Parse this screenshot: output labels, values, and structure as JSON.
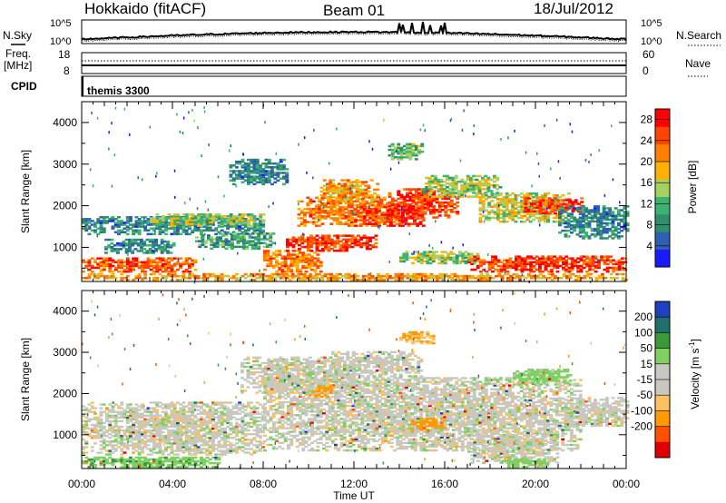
{
  "header": {
    "station": "Hokkaido (fitACF)",
    "beam": "Beam 01",
    "date": "18/Jul/2012"
  },
  "strips": {
    "nsky_label": "N.Sky",
    "nsearch_label": "N.Search",
    "noise_ticks_top": "10^5",
    "noise_ticks_bottom": "10^0",
    "freq_label_1": "Freq.",
    "freq_label_2": "[MHz]",
    "freq_ticks": [
      "18",
      "8"
    ],
    "nave_label": "Nave",
    "nave_ticks": [
      "60",
      "0"
    ],
    "cpid_label": "CPID",
    "cpid_value": "themis 3300"
  },
  "colors": {
    "power_scale": [
      "#1a1aff",
      "#2f5fb0",
      "#2f8f6a",
      "#3cb371",
      "#a8d060",
      "#ffb000",
      "#ff8000",
      "#ff4500",
      "#ff0000"
    ],
    "velocity_scale": [
      "#e00000",
      "#ff5000",
      "#ff9a00",
      "#ffc060",
      "#c8c8c0",
      "#c8c8c0",
      "#7fd060",
      "#3a9a3a",
      "#1f6f6a",
      "#2040c0"
    ],
    "ground_scatter": "#c8c8c0"
  },
  "chart_data": [
    {
      "type": "heatmap",
      "name": "power",
      "ylabel": "Slant Range [km]",
      "x_range": [
        "00:00",
        "00:00"
      ],
      "x_ticks": [
        "00:00",
        "04:00",
        "08:00",
        "12:00",
        "16:00",
        "20:00",
        "00:00"
      ],
      "y_range": [
        180,
        4500
      ],
      "y_ticks": [
        1000,
        2000,
        3000,
        4000
      ],
      "colorbar": {
        "label": "Power [dB]",
        "ticks": [
          4,
          8,
          12,
          16,
          20,
          24,
          28
        ],
        "range": [
          0,
          30
        ]
      },
      "regions": [
        {
          "t0": 0.0,
          "t1": 24.0,
          "r0": 200,
          "r1": 350,
          "power": 20
        },
        {
          "t0": 0.0,
          "t1": 5.0,
          "r0": 400,
          "r1": 750,
          "power": 24
        },
        {
          "t0": 1.0,
          "t1": 4.0,
          "r0": 850,
          "r1": 1200,
          "power": 8
        },
        {
          "t0": 0.0,
          "t1": 8.0,
          "r0": 1300,
          "r1": 1750,
          "power": 8
        },
        {
          "t0": 3.0,
          "t1": 8.0,
          "r0": 1500,
          "r1": 1800,
          "power": 14
        },
        {
          "t0": 5.0,
          "t1": 8.5,
          "r0": 950,
          "r1": 1350,
          "power": 10
        },
        {
          "t0": 8.0,
          "t1": 10.5,
          "r0": 400,
          "r1": 900,
          "power": 22
        },
        {
          "t0": 9.0,
          "t1": 13.0,
          "r0": 900,
          "r1": 1300,
          "power": 26
        },
        {
          "t0": 9.5,
          "t1": 13.5,
          "r0": 1500,
          "r1": 2200,
          "power": 22
        },
        {
          "t0": 10.5,
          "t1": 13.0,
          "r0": 2100,
          "r1": 2600,
          "power": 20
        },
        {
          "t0": 12.0,
          "t1": 15.0,
          "r0": 1500,
          "r1": 2000,
          "power": 26
        },
        {
          "t0": 13.5,
          "t1": 16.5,
          "r0": 1700,
          "r1": 2400,
          "power": 26
        },
        {
          "t0": 14.0,
          "t1": 17.5,
          "r0": 600,
          "r1": 900,
          "power": 14
        },
        {
          "t0": 15.0,
          "t1": 18.5,
          "r0": 2200,
          "r1": 2700,
          "power": 14
        },
        {
          "t0": 17.0,
          "t1": 24.0,
          "r0": 400,
          "r1": 800,
          "power": 26
        },
        {
          "t0": 17.5,
          "t1": 21.5,
          "r0": 1600,
          "r1": 2300,
          "power": 16
        },
        {
          "t0": 19.5,
          "t1": 22.0,
          "r0": 1800,
          "r1": 2200,
          "power": 26
        },
        {
          "t0": 13.5,
          "t1": 15.0,
          "r0": 3100,
          "r1": 3500,
          "power": 12
        },
        {
          "t0": 6.5,
          "t1": 9.0,
          "r0": 2500,
          "r1": 3100,
          "power": 8
        },
        {
          "t0": 21.0,
          "t1": 24.0,
          "r0": 1200,
          "r1": 2000,
          "power": 8
        }
      ]
    },
    {
      "type": "heatmap",
      "name": "velocity",
      "ylabel": "Slant Range [km]",
      "xlabel": "Time UT",
      "x_range": [
        "00:00",
        "00:00"
      ],
      "x_ticks": [
        "00:00",
        "04:00",
        "08:00",
        "12:00",
        "16:00",
        "20:00",
        "00:00"
      ],
      "y_range": [
        180,
        4500
      ],
      "y_ticks": [
        1000,
        2000,
        3000,
        4000
      ],
      "colorbar": {
        "label": "Velocity [m s^-1]",
        "ticks": [
          200,
          100,
          50,
          15,
          -15,
          -50,
          -100,
          -200
        ],
        "range": [
          -250,
          250
        ]
      },
      "regions": [
        {
          "t0": 0.0,
          "t1": 6.0,
          "r0": 200,
          "r1": 450,
          "velocity": 40
        },
        {
          "t0": 0.0,
          "t1": 8.0,
          "r0": 500,
          "r1": 1800,
          "velocity": 0
        },
        {
          "t0": 8.0,
          "t1": 22.0,
          "r0": 600,
          "r1": 2400,
          "velocity": 0
        },
        {
          "t0": 7.0,
          "t1": 12.0,
          "r0": 2000,
          "r1": 2900,
          "velocity": 0
        },
        {
          "t0": 11.0,
          "t1": 15.0,
          "r0": 2400,
          "r1": 3000,
          "velocity": 0
        },
        {
          "t0": 17.0,
          "t1": 21.0,
          "r0": 300,
          "r1": 1100,
          "velocity": 0
        },
        {
          "t0": 10.0,
          "t1": 11.0,
          "r0": 1900,
          "r1": 2200,
          "velocity": -60
        },
        {
          "t0": 14.0,
          "t1": 15.5,
          "r0": 3200,
          "r1": 3500,
          "velocity": -40
        },
        {
          "t0": 14.5,
          "t1": 16.0,
          "r0": 1100,
          "r1": 1400,
          "velocity": -70
        },
        {
          "t0": 18.5,
          "t1": 20.5,
          "r0": 200,
          "r1": 400,
          "velocity": 30
        },
        {
          "t0": 19.0,
          "t1": 21.5,
          "r0": 2200,
          "r1": 2600,
          "velocity": 30
        },
        {
          "t0": 21.0,
          "t1": 24.0,
          "r0": 1200,
          "r1": 1900,
          "velocity": 0
        }
      ]
    }
  ]
}
